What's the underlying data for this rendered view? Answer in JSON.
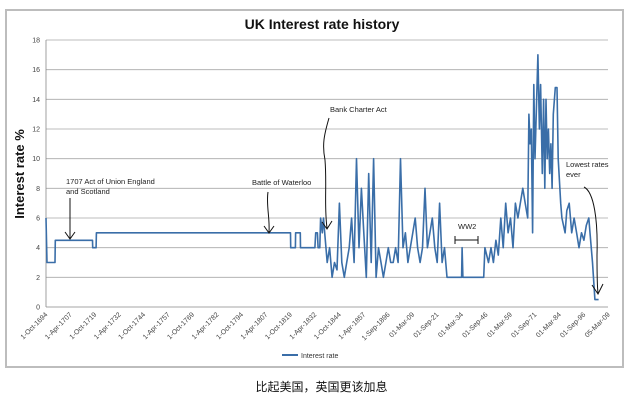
{
  "chart_data": {
    "type": "line",
    "title": "UK Interest rate history",
    "xlabel": "",
    "ylabel": "Interest rate %",
    "ylim": [
      0,
      18
    ],
    "yticks": [
      0,
      2,
      4,
      6,
      8,
      10,
      12,
      14,
      16,
      18
    ],
    "grid": true,
    "legend": {
      "position": "bottom",
      "entries": [
        "Interest rate"
      ]
    },
    "series_color": "#3a6ea8",
    "xtick_labels": [
      "1-Oct-1694",
      "1-Apr-1707",
      "1-Oct-1719",
      "1-Apr-1732",
      "1-Oct-1744",
      "1-Apr-1757",
      "1-Oct-1769",
      "1-Apr-1782",
      "1-Oct-1794",
      "1-Apr-1807",
      "1-Oct-1819",
      "1-Apr-1832",
      "1-Oct-1844",
      "1-Apr-1857",
      "1-Sep-1896",
      "01-Mar-09",
      "01-Sep-21",
      "01-Mar-34",
      "01-Sep-46",
      "01-Mar-59",
      "01-Sep-71",
      "01-Mar-84",
      "01-Sep-96",
      "05-Mar-09"
    ],
    "x_range": [
      0,
      230
    ],
    "series": [
      {
        "name": "Interest rate",
        "points": [
          [
            0,
            6
          ],
          [
            0.4,
            3
          ],
          [
            3.7,
            3
          ],
          [
            3.8,
            4.5
          ],
          [
            19,
            4.5
          ],
          [
            19.1,
            4
          ],
          [
            20.5,
            4
          ],
          [
            20.6,
            5
          ],
          [
            100,
            5
          ],
          [
            100.1,
            4
          ],
          [
            102,
            4
          ],
          [
            102.1,
            5
          ],
          [
            104,
            5
          ],
          [
            104.1,
            4
          ],
          [
            110,
            4
          ],
          [
            110.3,
            5
          ],
          [
            111,
            5
          ],
          [
            111.3,
            4
          ],
          [
            112,
            4
          ],
          [
            112.3,
            6
          ],
          [
            113,
            5
          ],
          [
            113.5,
            6
          ],
          [
            114,
            5
          ],
          [
            115,
            3
          ],
          [
            116,
            4
          ],
          [
            117,
            2
          ],
          [
            118,
            3
          ],
          [
            119,
            2.5
          ],
          [
            120,
            7
          ],
          [
            121,
            3
          ],
          [
            122,
            2
          ],
          [
            123,
            3
          ],
          [
            124,
            4
          ],
          [
            125,
            6
          ],
          [
            126,
            3
          ],
          [
            127,
            10
          ],
          [
            128,
            4
          ],
          [
            129,
            8
          ],
          [
            130,
            5
          ],
          [
            131,
            2
          ],
          [
            132,
            9
          ],
          [
            133,
            3
          ],
          [
            134,
            10
          ],
          [
            135,
            2
          ],
          [
            136,
            4
          ],
          [
            137,
            3
          ],
          [
            138,
            2
          ],
          [
            139,
            3
          ],
          [
            140,
            4
          ],
          [
            141,
            3
          ],
          [
            142,
            3
          ],
          [
            143,
            4
          ],
          [
            144,
            3
          ],
          [
            145,
            10
          ],
          [
            146,
            4
          ],
          [
            147,
            5
          ],
          [
            148,
            3
          ],
          [
            149,
            4
          ],
          [
            150,
            5
          ],
          [
            151,
            6
          ],
          [
            152,
            4
          ],
          [
            153,
            3
          ],
          [
            154,
            4
          ],
          [
            155,
            8
          ],
          [
            156,
            4
          ],
          [
            157,
            5
          ],
          [
            158,
            6
          ],
          [
            159,
            4
          ],
          [
            160,
            3
          ],
          [
            161,
            7
          ],
          [
            162,
            3
          ],
          [
            163,
            4
          ],
          [
            164,
            2
          ],
          [
            170,
            2
          ],
          [
            170.2,
            4
          ],
          [
            170.5,
            2
          ],
          [
            179,
            2
          ],
          [
            179.5,
            4
          ],
          [
            181,
            3
          ],
          [
            182,
            4
          ],
          [
            183,
            3
          ],
          [
            184,
            4.5
          ],
          [
            185,
            3.5
          ],
          [
            186,
            6
          ],
          [
            187,
            4
          ],
          [
            188,
            7
          ],
          [
            189,
            5
          ],
          [
            190,
            6
          ],
          [
            191,
            4
          ],
          [
            192,
            7
          ],
          [
            193,
            6
          ],
          [
            194,
            7
          ],
          [
            195,
            8
          ],
          [
            196,
            7
          ],
          [
            197,
            6
          ],
          [
            197.5,
            13
          ],
          [
            198,
            11
          ],
          [
            198.5,
            12
          ],
          [
            199,
            5
          ],
          [
            199.5,
            15
          ],
          [
            200,
            10
          ],
          [
            201.2,
            17
          ],
          [
            201.8,
            12
          ],
          [
            202.3,
            15
          ],
          [
            203,
            9
          ],
          [
            203.5,
            14
          ],
          [
            204,
            8
          ],
          [
            204.5,
            14
          ],
          [
            205,
            10
          ],
          [
            205.5,
            12
          ],
          [
            206,
            9
          ],
          [
            206.5,
            11
          ],
          [
            207,
            8
          ],
          [
            207.5,
            13
          ],
          [
            208.3,
            14.8
          ],
          [
            209,
            14.8
          ],
          [
            209.5,
            10
          ],
          [
            210.5,
            7
          ],
          [
            211,
            6
          ],
          [
            212.3,
            5
          ],
          [
            213,
            6.5
          ],
          [
            214,
            7
          ],
          [
            215,
            5
          ],
          [
            216,
            6
          ],
          [
            217,
            5
          ],
          [
            218,
            4
          ],
          [
            219,
            5
          ],
          [
            220,
            4.5
          ],
          [
            221,
            5.5
          ],
          [
            222,
            6
          ],
          [
            222.5,
            5
          ],
          [
            223.5,
            3
          ],
          [
            224.5,
            0.5
          ],
          [
            226,
            0.5
          ]
        ]
      }
    ],
    "annotations": [
      {
        "label": "annotation-act-of-union",
        "lines": [
          "1707 Act of Union England",
          "and Scotland"
        ]
      },
      {
        "label": "annotation-battle-of-waterloo",
        "lines": [
          "Battle of Waterloo"
        ]
      },
      {
        "label": "annotation-bank-charter-act",
        "lines": [
          "Bank Charter Act"
        ]
      },
      {
        "label": "annotation-ww2",
        "lines": [
          "WW2"
        ]
      },
      {
        "label": "annotation-lowest-rates",
        "lines": [
          "Lowest rates",
          "ever"
        ]
      }
    ]
  },
  "caption": "比起美国，英国更该加息"
}
